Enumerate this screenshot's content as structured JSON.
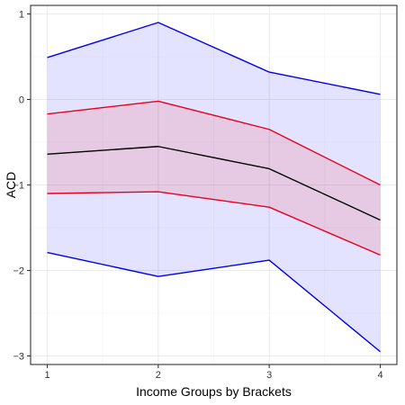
{
  "chart_data": {
    "type": "line",
    "title": "",
    "xlabel": "Income Groups by Brackets",
    "ylabel": "ACD",
    "x": [
      1,
      2,
      3,
      4
    ],
    "xticks": [
      "1",
      "2",
      "3",
      "4"
    ],
    "yticks": [
      "1",
      "0",
      "−1",
      "−2",
      "−3"
    ],
    "xlim": [
      0.85,
      4.15
    ],
    "ylim": [
      -3.1,
      1.1
    ],
    "grid": true,
    "legend": "none",
    "series": [
      {
        "values": [
          -0.64,
          -0.55,
          -0.81,
          -1.41
        ],
        "color": "#000000"
      },
      {
        "values": [
          -0.17,
          -0.02,
          -0.35,
          -1.0
        ],
        "color": "#e8001c"
      },
      {
        "values": [
          -1.1,
          -1.08,
          -1.26,
          -1.82
        ],
        "color": "#e8001c"
      },
      {
        "values": [
          0.49,
          0.9,
          0.32,
          0.06
        ],
        "color": "#0000ee"
      },
      {
        "values": [
          -1.79,
          -2.07,
          -1.88,
          -2.95
        ],
        "color": "#0000ee"
      }
    ],
    "bands": [
      {
        "lower": [
          -1.79,
          -2.07,
          -1.88,
          -2.95
        ],
        "upper": [
          0.49,
          0.9,
          0.32,
          0.06
        ],
        "fill": "#0000ff",
        "opacity": 0.11
      },
      {
        "lower": [
          -1.1,
          -1.08,
          -1.26,
          -1.82
        ],
        "upper": [
          -0.17,
          -0.02,
          -0.35,
          -1.0
        ],
        "fill": "#ff0000",
        "opacity": 0.11
      }
    ]
  }
}
